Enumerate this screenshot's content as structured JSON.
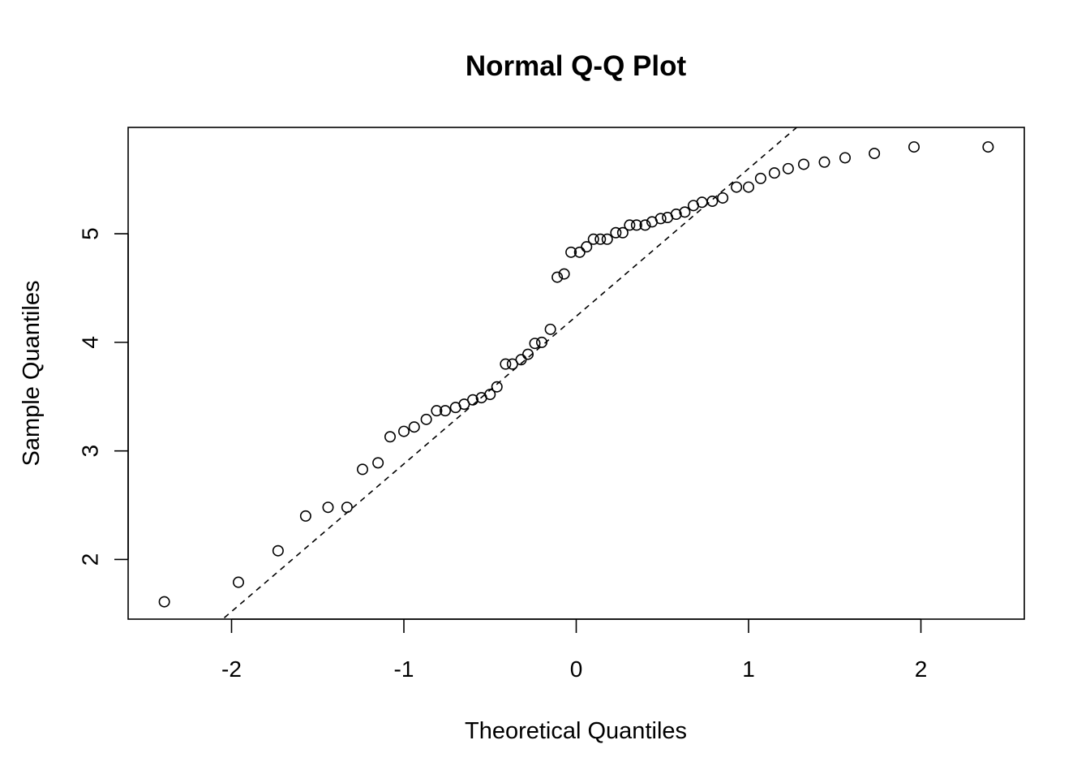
{
  "chart_data": {
    "type": "scatter",
    "title": "Normal Q-Q Plot",
    "xlabel": "Theoretical Quantiles",
    "ylabel": "Sample Quantiles",
    "xlim": [
      -2.6,
      2.6
    ],
    "ylim": [
      1.45,
      5.98
    ],
    "x_ticks": [
      -2,
      -1,
      0,
      1,
      2
    ],
    "x_tick_labels": [
      "-2",
      "-1",
      "0",
      "1",
      "2"
    ],
    "y_ticks": [
      2,
      3,
      4,
      5
    ],
    "y_tick_labels": [
      "2",
      "3",
      "4",
      "5"
    ],
    "grid": false,
    "legend": "none",
    "reference_line": {
      "style": "dashed",
      "color": "#000000",
      "intercept": 4.24,
      "slope": 1.36
    },
    "points": [
      [
        -2.39,
        1.61
      ],
      [
        -1.96,
        1.79
      ],
      [
        -1.73,
        2.08
      ],
      [
        -1.57,
        2.4
      ],
      [
        -1.44,
        2.48
      ],
      [
        -1.33,
        2.48
      ],
      [
        -1.24,
        2.83
      ],
      [
        -1.15,
        2.89
      ],
      [
        -1.08,
        3.13
      ],
      [
        -1.0,
        3.18
      ],
      [
        -0.94,
        3.22
      ],
      [
        -0.87,
        3.29
      ],
      [
        -0.81,
        3.37
      ],
      [
        -0.76,
        3.37
      ],
      [
        -0.7,
        3.4
      ],
      [
        -0.65,
        3.43
      ],
      [
        -0.6,
        3.47
      ],
      [
        -0.55,
        3.49
      ],
      [
        -0.5,
        3.52
      ],
      [
        -0.46,
        3.59
      ],
      [
        -0.41,
        3.8
      ],
      [
        -0.37,
        3.8
      ],
      [
        -0.32,
        3.84
      ],
      [
        -0.28,
        3.89
      ],
      [
        -0.24,
        3.99
      ],
      [
        -0.2,
        4.0
      ],
      [
        -0.15,
        4.12
      ],
      [
        -0.11,
        4.6
      ],
      [
        -0.07,
        4.63
      ],
      [
        -0.03,
        4.83
      ],
      [
        0.02,
        4.83
      ],
      [
        0.06,
        4.88
      ],
      [
        0.1,
        4.95
      ],
      [
        0.14,
        4.95
      ],
      [
        0.18,
        4.95
      ],
      [
        0.23,
        5.01
      ],
      [
        0.27,
        5.01
      ],
      [
        0.31,
        5.08
      ],
      [
        0.35,
        5.08
      ],
      [
        0.4,
        5.08
      ],
      [
        0.44,
        5.11
      ],
      [
        0.49,
        5.14
      ],
      [
        0.53,
        5.15
      ],
      [
        0.58,
        5.18
      ],
      [
        0.63,
        5.2
      ],
      [
        0.68,
        5.26
      ],
      [
        0.73,
        5.29
      ],
      [
        0.79,
        5.3
      ],
      [
        0.85,
        5.33
      ],
      [
        0.93,
        5.43
      ],
      [
        1.0,
        5.43
      ],
      [
        1.07,
        5.51
      ],
      [
        1.15,
        5.56
      ],
      [
        1.23,
        5.6
      ],
      [
        1.32,
        5.64
      ],
      [
        1.44,
        5.66
      ],
      [
        1.56,
        5.7
      ],
      [
        1.73,
        5.74
      ],
      [
        1.96,
        5.8
      ],
      [
        2.39,
        5.8
      ]
    ]
  }
}
